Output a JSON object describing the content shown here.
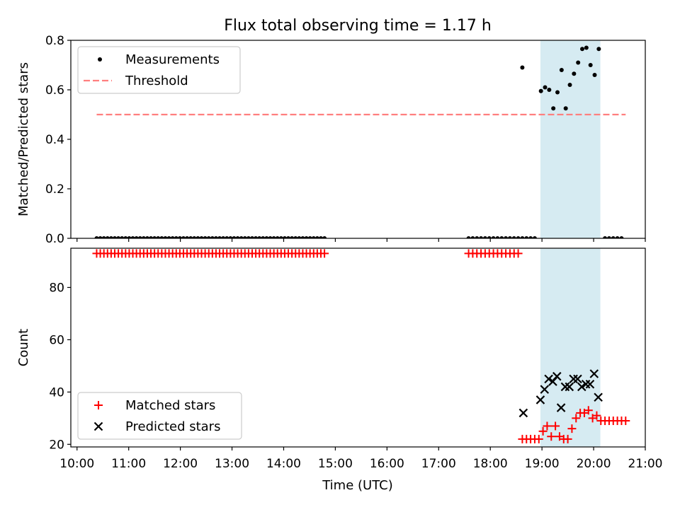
{
  "title": "Flux total observing time = 1.17 h",
  "xlabel": "Time (UTC)",
  "chart_data": [
    {
      "type": "scatter",
      "ylabel": "Matched/Predicted stars",
      "ylim": [
        0,
        0.8
      ],
      "yticks": [
        0.0,
        0.2,
        0.4,
        0.6,
        0.8
      ],
      "ytick_labels": [
        "0.0",
        "0.2",
        "0.4",
        "0.6",
        "0.8"
      ],
      "grid": false,
      "legend_position": "top-left",
      "legend": [
        {
          "name": "Measurements",
          "marker": "dot",
          "color": "#000000"
        },
        {
          "name": "Threshold",
          "marker": "dashed-line",
          "color": "#ff7f7f"
        }
      ],
      "highlight_span": {
        "start": 18.97,
        "end": 20.13,
        "color": "#add8e6"
      },
      "threshold": {
        "value": 0.5,
        "xmin": 10.38,
        "xmax": 20.62
      },
      "series": [
        {
          "name": "Measurements",
          "points": [
            [
              10.38,
              0
            ],
            [
              10.45,
              0
            ],
            [
              10.52,
              0
            ],
            [
              10.59,
              0
            ],
            [
              10.66,
              0
            ],
            [
              10.73,
              0
            ],
            [
              10.8,
              0
            ],
            [
              10.87,
              0
            ],
            [
              10.94,
              0
            ],
            [
              11.01,
              0
            ],
            [
              11.08,
              0
            ],
            [
              11.15,
              0
            ],
            [
              11.22,
              0
            ],
            [
              11.29,
              0
            ],
            [
              11.36,
              0
            ],
            [
              11.43,
              0
            ],
            [
              11.5,
              0
            ],
            [
              11.57,
              0
            ],
            [
              11.64,
              0
            ],
            [
              11.71,
              0
            ],
            [
              11.78,
              0
            ],
            [
              11.85,
              0
            ],
            [
              11.92,
              0
            ],
            [
              11.99,
              0
            ],
            [
              12.06,
              0
            ],
            [
              12.13,
              0
            ],
            [
              12.2,
              0
            ],
            [
              12.27,
              0
            ],
            [
              12.34,
              0
            ],
            [
              12.41,
              0
            ],
            [
              12.48,
              0
            ],
            [
              12.55,
              0
            ],
            [
              12.62,
              0
            ],
            [
              12.69,
              0
            ],
            [
              12.76,
              0
            ],
            [
              12.83,
              0
            ],
            [
              12.9,
              0
            ],
            [
              12.97,
              0
            ],
            [
              13.04,
              0
            ],
            [
              13.11,
              0
            ],
            [
              13.18,
              0
            ],
            [
              13.25,
              0
            ],
            [
              13.32,
              0
            ],
            [
              13.39,
              0
            ],
            [
              13.46,
              0
            ],
            [
              13.53,
              0
            ],
            [
              13.6,
              0
            ],
            [
              13.67,
              0
            ],
            [
              13.74,
              0
            ],
            [
              13.81,
              0
            ],
            [
              13.88,
              0
            ],
            [
              13.95,
              0
            ],
            [
              14.02,
              0
            ],
            [
              14.09,
              0
            ],
            [
              14.16,
              0
            ],
            [
              14.23,
              0
            ],
            [
              14.3,
              0
            ],
            [
              14.37,
              0
            ],
            [
              14.44,
              0
            ],
            [
              14.51,
              0
            ],
            [
              14.58,
              0
            ],
            [
              14.65,
              0
            ],
            [
              14.72,
              0
            ],
            [
              14.79,
              0
            ],
            [
              17.58,
              0
            ],
            [
              17.66,
              0
            ],
            [
              17.74,
              0
            ],
            [
              17.82,
              0
            ],
            [
              17.9,
              0
            ],
            [
              17.98,
              0
            ],
            [
              18.06,
              0
            ],
            [
              18.14,
              0
            ],
            [
              18.22,
              0
            ],
            [
              18.3,
              0
            ],
            [
              18.38,
              0
            ],
            [
              18.46,
              0
            ],
            [
              18.54,
              0
            ],
            [
              18.62,
              0
            ],
            [
              18.7,
              0
            ],
            [
              18.78,
              0
            ],
            [
              18.86,
              0
            ],
            [
              18.62,
              0.69
            ],
            [
              18.98,
              0.595
            ],
            [
              19.06,
              0.61
            ],
            [
              19.14,
              0.6
            ],
            [
              19.22,
              0.525
            ],
            [
              19.3,
              0.59
            ],
            [
              19.38,
              0.68
            ],
            [
              19.46,
              0.525
            ],
            [
              19.54,
              0.62
            ],
            [
              19.62,
              0.665
            ],
            [
              19.7,
              0.71
            ],
            [
              19.78,
              0.765
            ],
            [
              19.86,
              0.77
            ],
            [
              19.94,
              0.7
            ],
            [
              20.02,
              0.66
            ],
            [
              20.1,
              0.765
            ],
            [
              20.22,
              0
            ],
            [
              20.3,
              0
            ],
            [
              20.38,
              0
            ],
            [
              20.46,
              0
            ],
            [
              20.54,
              0
            ]
          ]
        }
      ]
    },
    {
      "type": "scatter",
      "ylabel": "Count",
      "ylim": [
        19,
        95
      ],
      "yticks": [
        20,
        40,
        60,
        80
      ],
      "ytick_labels": [
        "20",
        "40",
        "60",
        "80"
      ],
      "grid": false,
      "legend_position": "bottom-left",
      "legend": [
        {
          "name": "Matched stars",
          "marker": "plus",
          "color": "#ff0000"
        },
        {
          "name": "Predicted stars",
          "marker": "x",
          "color": "#000000"
        }
      ],
      "highlight_span": {
        "start": 18.97,
        "end": 20.13,
        "color": "#add8e6"
      },
      "xlim": [
        9.88,
        21.0
      ],
      "xticks": [
        10,
        11,
        12,
        13,
        14,
        15,
        16,
        17,
        18,
        19,
        20,
        21
      ],
      "xtick_labels": [
        "10:00",
        "11:00",
        "12:00",
        "13:00",
        "14:00",
        "15:00",
        "16:00",
        "17:00",
        "18:00",
        "19:00",
        "20:00",
        "21:00"
      ],
      "series": [
        {
          "name": "Matched stars",
          "points": [
            [
              10.38,
              93
            ],
            [
              10.45,
              93
            ],
            [
              10.52,
              93
            ],
            [
              10.59,
              93
            ],
            [
              10.66,
              93
            ],
            [
              10.73,
              93
            ],
            [
              10.8,
              93
            ],
            [
              10.87,
              93
            ],
            [
              10.94,
              93
            ],
            [
              11.01,
              93
            ],
            [
              11.08,
              93
            ],
            [
              11.15,
              93
            ],
            [
              11.22,
              93
            ],
            [
              11.29,
              93
            ],
            [
              11.36,
              93
            ],
            [
              11.43,
              93
            ],
            [
              11.5,
              93
            ],
            [
              11.57,
              93
            ],
            [
              11.64,
              93
            ],
            [
              11.71,
              93
            ],
            [
              11.78,
              93
            ],
            [
              11.85,
              93
            ],
            [
              11.92,
              93
            ],
            [
              11.99,
              93
            ],
            [
              12.06,
              93
            ],
            [
              12.13,
              93
            ],
            [
              12.2,
              93
            ],
            [
              12.27,
              93
            ],
            [
              12.34,
              93
            ],
            [
              12.41,
              93
            ],
            [
              12.48,
              93
            ],
            [
              12.55,
              93
            ],
            [
              12.62,
              93
            ],
            [
              12.69,
              93
            ],
            [
              12.76,
              93
            ],
            [
              12.83,
              93
            ],
            [
              12.9,
              93
            ],
            [
              12.97,
              93
            ],
            [
              13.04,
              93
            ],
            [
              13.11,
              93
            ],
            [
              13.18,
              93
            ],
            [
              13.25,
              93
            ],
            [
              13.32,
              93
            ],
            [
              13.39,
              93
            ],
            [
              13.46,
              93
            ],
            [
              13.53,
              93
            ],
            [
              13.6,
              93
            ],
            [
              13.67,
              93
            ],
            [
              13.74,
              93
            ],
            [
              13.81,
              93
            ],
            [
              13.88,
              93
            ],
            [
              13.95,
              93
            ],
            [
              14.02,
              93
            ],
            [
              14.09,
              93
            ],
            [
              14.16,
              93
            ],
            [
              14.23,
              93
            ],
            [
              14.3,
              93
            ],
            [
              14.37,
              93
            ],
            [
              14.44,
              93
            ],
            [
              14.51,
              93
            ],
            [
              14.58,
              93
            ],
            [
              14.65,
              93
            ],
            [
              14.72,
              93
            ],
            [
              14.79,
              93
            ],
            [
              17.58,
              93
            ],
            [
              17.66,
              93
            ],
            [
              17.74,
              93
            ],
            [
              17.82,
              93
            ],
            [
              17.9,
              93
            ],
            [
              17.98,
              93
            ],
            [
              18.06,
              93
            ],
            [
              18.14,
              93
            ],
            [
              18.22,
              93
            ],
            [
              18.3,
              93
            ],
            [
              18.38,
              93
            ],
            [
              18.46,
              93
            ],
            [
              18.54,
              93
            ],
            [
              18.62,
              22
            ],
            [
              18.7,
              22
            ],
            [
              18.78,
              22
            ],
            [
              18.86,
              22
            ],
            [
              18.94,
              22
            ],
            [
              19.02,
              25
            ],
            [
              19.1,
              27
            ],
            [
              19.18,
              23
            ],
            [
              19.26,
              27
            ],
            [
              19.34,
              23
            ],
            [
              19.42,
              22
            ],
            [
              19.5,
              22
            ],
            [
              19.58,
              26
            ],
            [
              19.66,
              30
            ],
            [
              19.74,
              32
            ],
            [
              19.82,
              32
            ],
            [
              19.9,
              33
            ],
            [
              19.98,
              30
            ],
            [
              20.06,
              31
            ],
            [
              20.14,
              29
            ],
            [
              20.22,
              29
            ],
            [
              20.3,
              29
            ],
            [
              20.38,
              29
            ],
            [
              20.46,
              29
            ],
            [
              20.54,
              29
            ],
            [
              20.62,
              29
            ]
          ]
        },
        {
          "name": "Predicted stars",
          "points": [
            [
              18.64,
              32
            ],
            [
              18.97,
              37
            ],
            [
              19.05,
              41
            ],
            [
              19.13,
              45
            ],
            [
              19.21,
              44
            ],
            [
              19.29,
              46
            ],
            [
              19.37,
              34
            ],
            [
              19.45,
              42
            ],
            [
              19.53,
              42
            ],
            [
              19.61,
              45
            ],
            [
              19.69,
              45
            ],
            [
              19.77,
              42
            ],
            [
              19.85,
              43
            ],
            [
              19.93,
              43
            ],
            [
              20.01,
              47
            ],
            [
              20.09,
              38
            ]
          ]
        }
      ]
    }
  ]
}
